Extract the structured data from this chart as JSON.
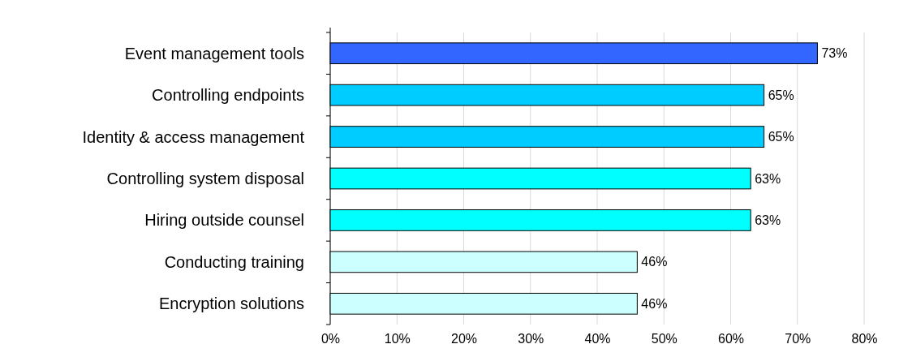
{
  "chart_data": {
    "type": "bar",
    "orientation": "horizontal",
    "categories": [
      "Event management tools",
      "Controlling endpoints",
      "Identity & access management",
      "Controlling system disposal",
      "Hiring outside counsel",
      "Conducting training",
      "Encryption solutions"
    ],
    "values": [
      73,
      65,
      65,
      63,
      63,
      46,
      46
    ],
    "colors": [
      "#3366ff",
      "#00ccff",
      "#00ccff",
      "#00ffff",
      "#00ffff",
      "#ccffff",
      "#ccffff"
    ],
    "xlim": [
      0,
      80
    ],
    "xticks": [
      {
        "value": 0,
        "label": "0%"
      },
      {
        "value": 10,
        "label": "10%"
      },
      {
        "value": 20,
        "label": "20%"
      },
      {
        "value": 30,
        "label": "30%"
      },
      {
        "value": 40,
        "label": "40%"
      },
      {
        "value": 50,
        "label": "50%"
      },
      {
        "value": 60,
        "label": "60%"
      },
      {
        "value": 70,
        "label": "70%"
      },
      {
        "value": 80,
        "label": "80%"
      }
    ],
    "value_labels": [
      "73%",
      "65%",
      "65%",
      "63%",
      "63%",
      "46%",
      "46%"
    ],
    "grid": "x"
  }
}
